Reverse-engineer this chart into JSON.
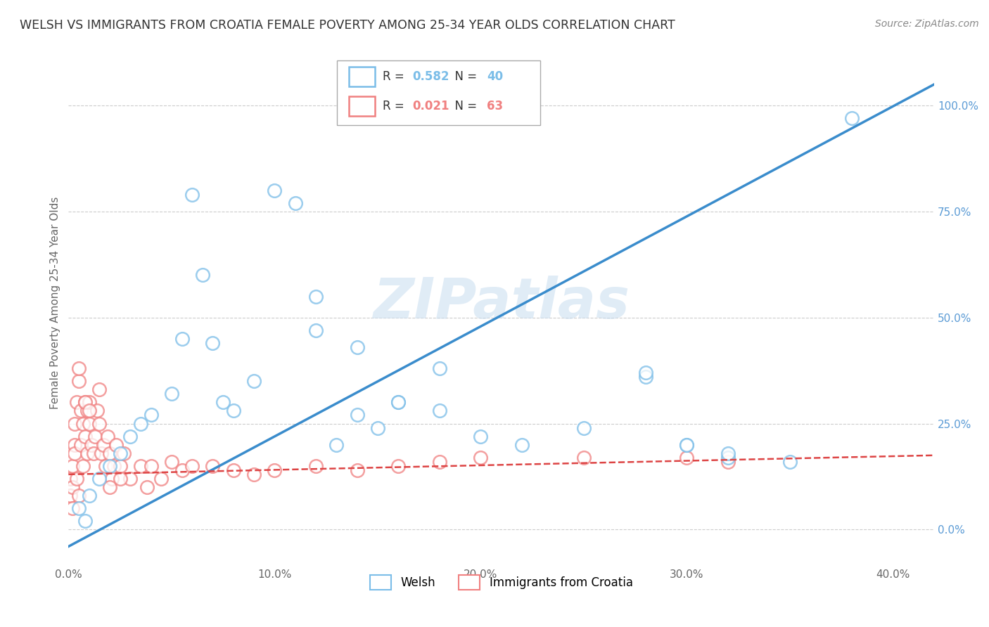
{
  "title": "WELSH VS IMMIGRANTS FROM CROATIA FEMALE POVERTY AMONG 25-34 YEAR OLDS CORRELATION CHART",
  "source": "Source: ZipAtlas.com",
  "ylabel": "Female Poverty Among 25-34 Year Olds",
  "xlim": [
    0.0,
    0.42
  ],
  "ylim": [
    -0.08,
    1.15
  ],
  "xticks": [
    0.0,
    0.05,
    0.1,
    0.15,
    0.2,
    0.25,
    0.3,
    0.35,
    0.4
  ],
  "xtick_labels": [
    "0.0%",
    "",
    "10.0%",
    "",
    "20.0%",
    "",
    "30.0%",
    "",
    "40.0%"
  ],
  "yticks_right": [
    0.0,
    0.25,
    0.5,
    0.75,
    1.0
  ],
  "ytick_labels_right": [
    "0.0%",
    "25.0%",
    "50.0%",
    "75.0%",
    "100.0%"
  ],
  "welsh_R": 0.582,
  "welsh_N": 40,
  "croatia_R": 0.021,
  "croatia_N": 63,
  "welsh_color": "#7bbde8",
  "welsh_line_color": "#3a8ccc",
  "croatia_color": "#f08080",
  "croatia_line_color": "#d44",
  "watermark": "ZIPatlas",
  "background_color": "#ffffff",
  "grid_color": "#cccccc",
  "welsh_line_x0": 0.0,
  "welsh_line_y0": -0.04,
  "welsh_line_x1": 0.42,
  "welsh_line_y1": 1.05,
  "croatia_line_x0": 0.0,
  "croatia_line_y0": 0.13,
  "croatia_line_x1": 0.42,
  "croatia_line_y1": 0.175,
  "welsh_x": [
    0.005,
    0.008,
    0.01,
    0.015,
    0.02,
    0.025,
    0.03,
    0.035,
    0.04,
    0.05,
    0.055,
    0.06,
    0.065,
    0.07,
    0.075,
    0.08,
    0.09,
    0.1,
    0.11,
    0.12,
    0.13,
    0.14,
    0.15,
    0.16,
    0.18,
    0.2,
    0.22,
    0.25,
    0.28,
    0.3,
    0.32,
    0.35,
    0.12,
    0.14,
    0.16,
    0.18,
    0.28,
    0.3,
    0.32,
    0.38
  ],
  "welsh_y": [
    0.05,
    0.02,
    0.08,
    0.12,
    0.15,
    0.18,
    0.22,
    0.25,
    0.27,
    0.32,
    0.45,
    0.79,
    0.6,
    0.44,
    0.3,
    0.28,
    0.35,
    0.8,
    0.77,
    0.55,
    0.2,
    0.27,
    0.24,
    0.3,
    0.38,
    0.22,
    0.2,
    0.24,
    0.36,
    0.2,
    0.17,
    0.16,
    0.47,
    0.43,
    0.3,
    0.28,
    0.37,
    0.2,
    0.18,
    0.97
  ],
  "croatia_x": [
    0.001,
    0.001,
    0.002,
    0.002,
    0.002,
    0.003,
    0.003,
    0.003,
    0.004,
    0.004,
    0.005,
    0.005,
    0.006,
    0.006,
    0.007,
    0.007,
    0.008,
    0.008,
    0.009,
    0.009,
    0.01,
    0.01,
    0.011,
    0.012,
    0.013,
    0.014,
    0.015,
    0.016,
    0.017,
    0.018,
    0.019,
    0.02,
    0.021,
    0.022,
    0.023,
    0.025,
    0.027,
    0.03,
    0.035,
    0.038,
    0.04,
    0.045,
    0.05,
    0.055,
    0.06,
    0.07,
    0.08,
    0.09,
    0.1,
    0.12,
    0.14,
    0.16,
    0.18,
    0.2,
    0.25,
    0.3,
    0.32,
    0.005,
    0.008,
    0.01,
    0.015,
    0.02,
    0.025
  ],
  "croatia_y": [
    0.12,
    0.08,
    0.15,
    0.1,
    0.05,
    0.2,
    0.25,
    0.18,
    0.3,
    0.12,
    0.35,
    0.08,
    0.28,
    0.2,
    0.25,
    0.15,
    0.3,
    0.22,
    0.18,
    0.28,
    0.25,
    0.3,
    0.2,
    0.18,
    0.22,
    0.28,
    0.25,
    0.18,
    0.2,
    0.15,
    0.22,
    0.18,
    0.12,
    0.15,
    0.2,
    0.15,
    0.18,
    0.12,
    0.15,
    0.1,
    0.15,
    0.12,
    0.16,
    0.14,
    0.15,
    0.15,
    0.14,
    0.13,
    0.14,
    0.15,
    0.14,
    0.15,
    0.16,
    0.17,
    0.17,
    0.17,
    0.16,
    0.38,
    0.3,
    0.28,
    0.33,
    0.1,
    0.12
  ]
}
